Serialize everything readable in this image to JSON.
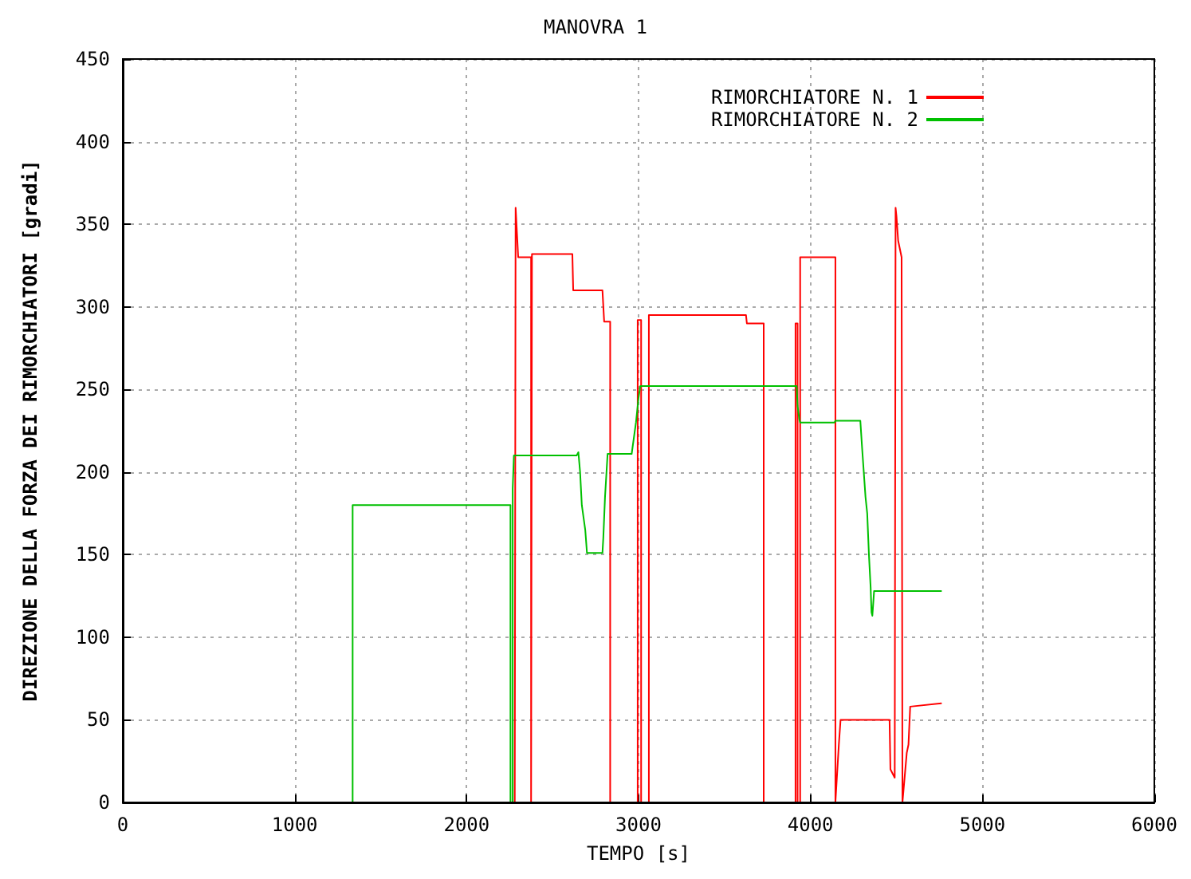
{
  "chart_data": {
    "type": "line",
    "title": "MANOVRA 1",
    "xlabel": "TEMPO [s]",
    "ylabel": "DIREZIONE DELLA FORZA DEI RIMORCHIATORI [gradi]",
    "xlim": [
      0,
      6000
    ],
    "xticks": [
      0,
      1000,
      2000,
      3000,
      4000,
      5000,
      6000
    ],
    "ylim": [
      0,
      450
    ],
    "yticks": [
      0,
      50,
      100,
      150,
      200,
      250,
      300,
      350,
      400,
      450
    ],
    "grid": true,
    "legend": "top right",
    "marker": "none",
    "line_style": "solid",
    "series": [
      {
        "name": "RIMORCHIATORE N. 1",
        "color": "#ff0000",
        "x": [
          2280,
          2285,
          2290,
          2295,
          2300,
          2375,
          2375,
          2380,
          2380,
          2615,
          2620,
          2790,
          2800,
          2835,
          2835,
          2995,
          2995,
          3015,
          3015,
          3060,
          3060,
          3625,
          3630,
          3728,
          3728,
          3913,
          3913,
          3925,
          3925,
          3940,
          3940,
          4145,
          4145,
          4165,
          4175,
          4460,
          4465,
          4490,
          4495,
          4500,
          4510,
          4530,
          4535,
          4540,
          4560,
          4570,
          4580,
          4760
        ],
        "values": [
          0,
          360,
          350,
          340,
          330,
          330,
          0,
          0,
          332,
          332,
          310,
          310,
          291,
          291,
          0,
          0,
          292,
          292,
          0,
          0,
          295,
          295,
          290,
          290,
          0,
          0,
          290,
          290,
          0,
          0,
          330,
          330,
          0,
          35,
          50,
          50,
          20,
          15,
          360,
          355,
          340,
          330,
          0,
          0,
          30,
          35,
          58,
          60
        ]
      },
      {
        "name": "RIMORCHIATORE N. 2",
        "color": "#00c000",
        "x": [
          1337,
          1337,
          2255,
          2255,
          2268,
          2268,
          2275,
          2640,
          2650,
          2660,
          2670,
          2690,
          2700,
          2790,
          2795,
          2805,
          2820,
          2960,
          2985,
          3000,
          3010,
          3920,
          3925,
          3935,
          3940,
          4140,
          4145,
          4290,
          4300,
          4310,
          4320,
          4330,
          4340,
          4350,
          4355,
          4360,
          4370,
          4760
        ],
        "values": [
          0,
          180,
          180,
          0,
          0,
          190,
          210,
          210,
          212,
          200,
          180,
          165,
          151,
          151,
          160,
          185,
          211,
          211,
          230,
          245,
          252,
          252,
          240,
          232,
          230,
          230,
          231,
          231,
          215,
          200,
          185,
          175,
          150,
          130,
          115,
          113,
          128,
          128
        ]
      }
    ]
  }
}
